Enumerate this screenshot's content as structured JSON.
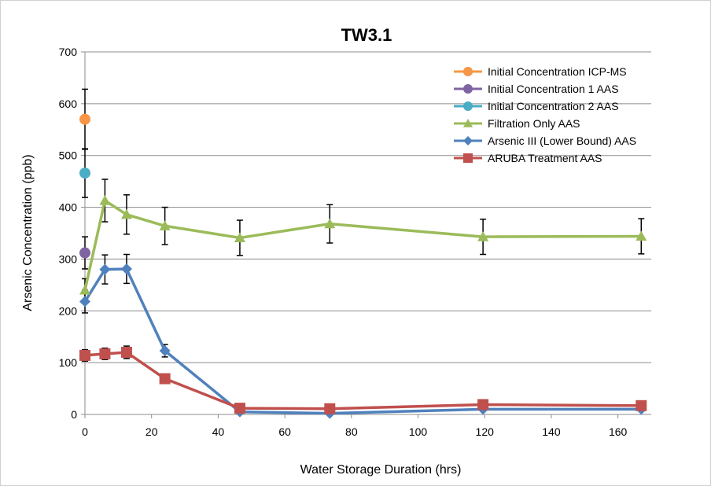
{
  "chart_data": {
    "type": "line",
    "title": "TW3.1",
    "xlabel": "Water Storage Duration (hrs)",
    "ylabel": "Arsenic Concentration (ppb)",
    "xlim": [
      0,
      170
    ],
    "ylim": [
      0,
      700
    ],
    "xticks": [
      0,
      20,
      40,
      60,
      80,
      100,
      120,
      140,
      160
    ],
    "yticks": [
      0,
      100,
      200,
      300,
      400,
      500,
      600,
      700
    ],
    "grid": "horizontal",
    "legend_position": "top-right",
    "series": [
      {
        "name": "Initial Concentration ICP-MS",
        "color": "#f79646",
        "marker": "circle",
        "line": false,
        "x": [
          0
        ],
        "y": [
          570
        ],
        "err": [
          58
        ]
      },
      {
        "name": "Initial Concentration 1 AAS",
        "color": "#8064a2",
        "marker": "circle",
        "line": false,
        "x": [
          0
        ],
        "y": [
          312
        ],
        "err": [
          31
        ]
      },
      {
        "name": "Initial Concentration 2 AAS",
        "color": "#4bacc6",
        "marker": "circle",
        "line": false,
        "x": [
          0
        ],
        "y": [
          466
        ],
        "err": [
          47
        ]
      },
      {
        "name": "Filtration Only AAS",
        "color": "#9bbb59",
        "marker": "triangle",
        "line": true,
        "x": [
          0,
          6,
          12.5,
          24,
          46.5,
          73.5,
          119.5,
          167
        ],
        "y": [
          240,
          413,
          386,
          364,
          341,
          368,
          343,
          344
        ],
        "err": [
          22,
          41,
          38,
          36,
          34,
          37,
          34,
          34
        ]
      },
      {
        "name": "Arsenic III (Lower Bound) AAS",
        "color": "#4f81bd",
        "marker": "diamond",
        "line": true,
        "x": [
          0,
          6,
          12.5,
          24,
          46.5,
          73.5,
          119.5,
          167
        ],
        "y": [
          218,
          280,
          281,
          123,
          5,
          2,
          10,
          10
        ],
        "err": [
          22,
          28,
          28,
          12,
          0,
          0,
          0,
          0
        ]
      },
      {
        "name": "ARUBA Treatment AAS",
        "color": "#c0504d",
        "marker": "square",
        "line": true,
        "x": [
          0,
          6,
          12.5,
          24,
          46.5,
          73.5,
          119.5,
          167
        ],
        "y": [
          114,
          117,
          120,
          69,
          12,
          11,
          19,
          17
        ],
        "err": [
          11,
          11,
          12,
          0,
          0,
          0,
          0,
          0
        ]
      }
    ]
  }
}
